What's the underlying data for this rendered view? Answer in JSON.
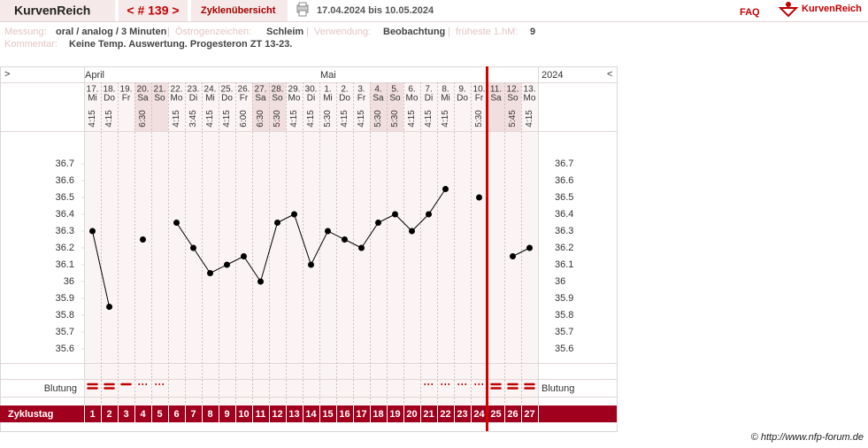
{
  "header": {
    "logo": "KurvenReich",
    "cycle_nav": "< # 139 >",
    "overview": "Zyklenübersicht",
    "date_range": "17.04.2024 bis 10.05.2024",
    "faq": "FAQ",
    "brand": "KurvenReich"
  },
  "info": {
    "measurement_label": "Messung:",
    "measurement": "oral / analog / 3 Minuten",
    "sep": "|",
    "estrogen_label": "Östrogenzeichen:",
    "estrogen": "Schleim",
    "usage_label": "Verwendung:",
    "usage": "Beobachtung",
    "earliest_label": "früheste 1.hM:",
    "earliest": "9",
    "comment_label": "Kommentar:",
    "comment": "Keine Temp. Auswertung. Progesteron ZT 13-23."
  },
  "chart_data": {
    "type": "line",
    "nav_left": ">",
    "nav_right": "<",
    "year": "2024",
    "months": [
      "April",
      null,
      null,
      null,
      null,
      null,
      null,
      null,
      null,
      null,
      null,
      null,
      null,
      null,
      "Mai",
      null,
      null,
      null,
      null,
      null,
      null,
      null,
      null,
      null,
      null,
      null,
      null
    ],
    "dates": [
      "17.",
      "18.",
      "19.",
      "20.",
      "21.",
      "22.",
      "23.",
      "24.",
      "25.",
      "26.",
      "27.",
      "28.",
      "29.",
      "30.",
      "1.",
      "2.",
      "3.",
      "4.",
      "5.",
      "6.",
      "7.",
      "8.",
      "9.",
      "10.",
      "11.",
      "12.",
      "13."
    ],
    "weekdays": [
      "Mi",
      "Do",
      "Fr",
      "Sa",
      "So",
      "Mo",
      "Di",
      "Mi",
      "Do",
      "Fr",
      "Sa",
      "So",
      "Mo",
      "Di",
      "Mi",
      "Do",
      "Fr",
      "Sa",
      "So",
      "Mo",
      "Di",
      "Mi",
      "Do",
      "Fr",
      "Sa",
      "So",
      "Mo"
    ],
    "shaded": [
      false,
      false,
      false,
      true,
      true,
      false,
      false,
      false,
      false,
      false,
      true,
      true,
      false,
      false,
      false,
      false,
      false,
      true,
      true,
      false,
      false,
      false,
      false,
      false,
      true,
      true,
      false
    ],
    "times": [
      "4:15",
      "4:15",
      null,
      "6:30",
      null,
      "4:15",
      "3:45",
      "4:15",
      "4:15",
      "6:00",
      "6:30",
      "5:30",
      "4:15",
      "4:15",
      "5:30",
      "4:15",
      "4:15",
      "5:30",
      "5:30",
      "4:15",
      "4:15",
      "4:15",
      null,
      "5:30",
      null,
      "5:45",
      "4:15"
    ],
    "values": [
      36.3,
      35.85,
      null,
      36.25,
      null,
      36.35,
      36.2,
      36.05,
      36.1,
      36.15,
      36.0,
      36.35,
      36.4,
      36.1,
      36.3,
      36.25,
      36.2,
      36.35,
      36.4,
      36.3,
      36.4,
      36.55,
      null,
      36.5,
      null,
      36.15,
      36.2
    ],
    "color": "#000000",
    "ylim": [
      35.5,
      36.9
    ],
    "yticks": [
      36.7,
      36.6,
      36.5,
      36.4,
      36.3,
      36.2,
      36.1,
      36,
      35.9,
      35.8,
      35.7,
      35.6
    ],
    "bleeding_label": "Blutung",
    "bleeding": [
      3,
      3,
      2,
      1,
      1,
      null,
      null,
      null,
      null,
      null,
      null,
      null,
      null,
      null,
      null,
      null,
      null,
      null,
      null,
      null,
      1,
      1,
      1,
      1,
      3,
      3,
      3
    ],
    "bleeding_color": "#c00000",
    "cycle_day_label": "Zyklustag",
    "cycle_days": [
      1,
      2,
      3,
      4,
      5,
      6,
      7,
      8,
      9,
      10,
      11,
      12,
      13,
      14,
      15,
      16,
      17,
      18,
      19,
      20,
      21,
      22,
      23,
      24,
      25,
      26,
      27
    ]
  },
  "footer": "© http://www.nfp-forum.de"
}
